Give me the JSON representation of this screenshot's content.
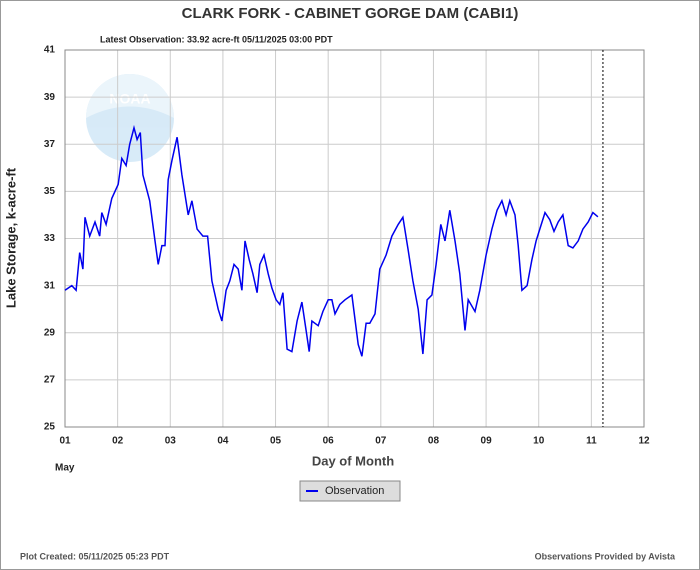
{
  "chart_data": {
    "type": "line",
    "title": "CLARK FORK - CABINET GORGE DAM  (CABI1)",
    "subtitle": "Latest Observation: 33.92 acre-ft 05/11/2025 03:00 PDT",
    "y_label": "Lake Storage, k-acre-ft",
    "x_label": "Day of Month",
    "x_month": "May",
    "logo_text": "NOAA",
    "footer_left": "Plot Created: 05/11/2025 05:23 PDT",
    "footer_right": "Observations Provided by Avista",
    "xlim": [
      1,
      12
    ],
    "ylim": [
      25,
      41
    ],
    "xticks": [
      {
        "value": 1,
        "label": "01"
      },
      {
        "value": 2,
        "label": "02"
      },
      {
        "value": 3,
        "label": "03"
      },
      {
        "value": 4,
        "label": "04"
      },
      {
        "value": 5,
        "label": "05"
      },
      {
        "value": 6,
        "label": "06"
      },
      {
        "value": 7,
        "label": "07"
      },
      {
        "value": 8,
        "label": "08"
      },
      {
        "value": 9,
        "label": "09"
      },
      {
        "value": 10,
        "label": "10"
      },
      {
        "value": 11,
        "label": "11"
      },
      {
        "value": 12,
        "label": "12"
      }
    ],
    "yticks": [
      25,
      27,
      29,
      31,
      33,
      35,
      37,
      39,
      41
    ],
    "grid": true,
    "current_time_x": 11.22,
    "series": [
      {
        "name": "Observation",
        "color": "#0000ee",
        "x": [
          1.0,
          1.13,
          1.21,
          1.28,
          1.34,
          1.38,
          1.47,
          1.57,
          1.66,
          1.7,
          1.78,
          1.89,
          2.01,
          2.08,
          2.16,
          2.23,
          2.31,
          2.37,
          2.43,
          2.48,
          2.61,
          2.71,
          2.77,
          2.84,
          2.9,
          2.96,
          3.03,
          3.13,
          3.22,
          3.34,
          3.41,
          3.51,
          3.62,
          3.71,
          3.79,
          3.91,
          3.98,
          4.06,
          4.13,
          4.21,
          4.29,
          4.36,
          4.42,
          4.5,
          4.57,
          4.65,
          4.7,
          4.78,
          4.86,
          4.93,
          5.01,
          5.08,
          5.14,
          5.22,
          5.31,
          5.41,
          5.5,
          5.58,
          5.64,
          5.69,
          5.81,
          5.9,
          6.0,
          6.07,
          6.13,
          6.22,
          6.32,
          6.45,
          6.57,
          6.64,
          6.72,
          6.79,
          6.89,
          6.98,
          7.1,
          7.21,
          7.33,
          7.42,
          7.52,
          7.61,
          7.71,
          7.8,
          7.88,
          7.97,
          8.05,
          8.14,
          8.22,
          8.31,
          8.41,
          8.5,
          8.6,
          8.66,
          8.79,
          8.88,
          9.0,
          9.11,
          9.21,
          9.3,
          9.38,
          9.45,
          9.55,
          9.61,
          9.68,
          9.78,
          9.87,
          9.95,
          10.02,
          10.12,
          10.21,
          10.29,
          10.37,
          10.46,
          10.56,
          10.65,
          10.75,
          10.84,
          10.94,
          11.03,
          11.125
        ],
        "values": [
          30.8,
          31.0,
          30.8,
          32.4,
          31.7,
          33.9,
          33.1,
          33.7,
          33.1,
          34.1,
          33.6,
          34.7,
          35.3,
          36.4,
          36.1,
          37.0,
          37.7,
          37.2,
          37.5,
          35.7,
          34.6,
          32.9,
          31.9,
          32.7,
          32.7,
          35.5,
          36.3,
          37.3,
          35.7,
          34.0,
          34.6,
          33.4,
          33.1,
          33.1,
          31.2,
          30.0,
          29.5,
          30.8,
          31.2,
          31.9,
          31.7,
          30.8,
          32.9,
          32.1,
          31.5,
          30.7,
          31.9,
          32.3,
          31.5,
          30.9,
          30.4,
          30.2,
          30.7,
          28.3,
          28.2,
          29.5,
          30.3,
          29.1,
          28.2,
          29.5,
          29.3,
          29.9,
          30.4,
          30.4,
          29.8,
          30.2,
          30.4,
          30.6,
          28.5,
          28.0,
          29.4,
          29.4,
          29.8,
          31.7,
          32.3,
          33.1,
          33.6,
          33.9,
          32.5,
          31.2,
          30.0,
          28.1,
          30.4,
          30.6,
          31.9,
          33.6,
          32.9,
          34.2,
          32.9,
          31.5,
          29.1,
          30.4,
          29.9,
          30.8,
          32.3,
          33.4,
          34.2,
          34.6,
          34.0,
          34.6,
          34.0,
          32.7,
          30.8,
          31.0,
          32.1,
          32.9,
          33.4,
          34.1,
          33.8,
          33.3,
          33.7,
          34.0,
          32.7,
          32.6,
          32.9,
          33.4,
          33.7,
          34.1,
          33.92
        ]
      }
    ]
  }
}
